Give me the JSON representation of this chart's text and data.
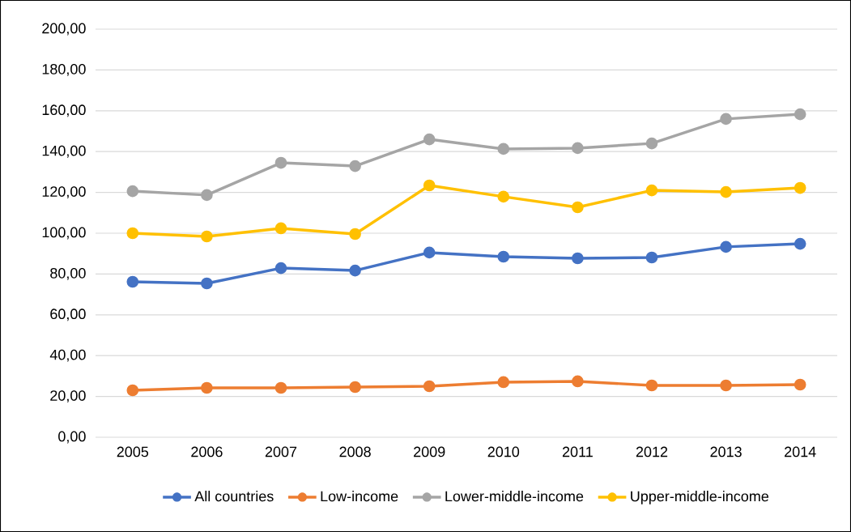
{
  "chart_data": {
    "type": "line",
    "categories": [
      "2005",
      "2006",
      "2007",
      "2008",
      "2009",
      "2010",
      "2011",
      "2012",
      "2013",
      "2014"
    ],
    "series": [
      {
        "name": "All countries",
        "color": "#4472c4",
        "values": [
          76.2,
          75.4,
          82.9,
          81.7,
          90.5,
          88.5,
          87.7,
          88.1,
          93.3,
          94.8
        ]
      },
      {
        "name": "Low-income",
        "color": "#ed7d31",
        "values": [
          23.0,
          24.2,
          24.2,
          24.6,
          25.0,
          27.0,
          27.4,
          25.4,
          25.4,
          25.8
        ]
      },
      {
        "name": "Lower-middle-income",
        "color": "#a5a5a5",
        "values": [
          120.6,
          118.7,
          134.5,
          132.9,
          146.0,
          141.3,
          141.7,
          144.0,
          156.0,
          158.3
        ]
      },
      {
        "name": "Upper-middle-income",
        "color": "#ffc000",
        "values": [
          100.0,
          98.4,
          102.4,
          99.6,
          123.4,
          117.9,
          112.7,
          121.0,
          120.2,
          122.2
        ]
      }
    ],
    "ylim": [
      0,
      200
    ],
    "yticks": [
      {
        "value": 0,
        "label": "0,00"
      },
      {
        "value": 20,
        "label": "20,00"
      },
      {
        "value": 40,
        "label": "40,00"
      },
      {
        "value": 60,
        "label": "60,00"
      },
      {
        "value": 80,
        "label": "80,00"
      },
      {
        "value": 100,
        "label": "100,00"
      },
      {
        "value": 120,
        "label": "120,00"
      },
      {
        "value": 140,
        "label": "140,00"
      },
      {
        "value": 160,
        "label": "160,00"
      },
      {
        "value": 180,
        "label": "180,00"
      },
      {
        "value": 200,
        "label": "200,00"
      }
    ],
    "grid": "y",
    "legend": "bottom",
    "marker": "circle",
    "line_style": "solid"
  }
}
